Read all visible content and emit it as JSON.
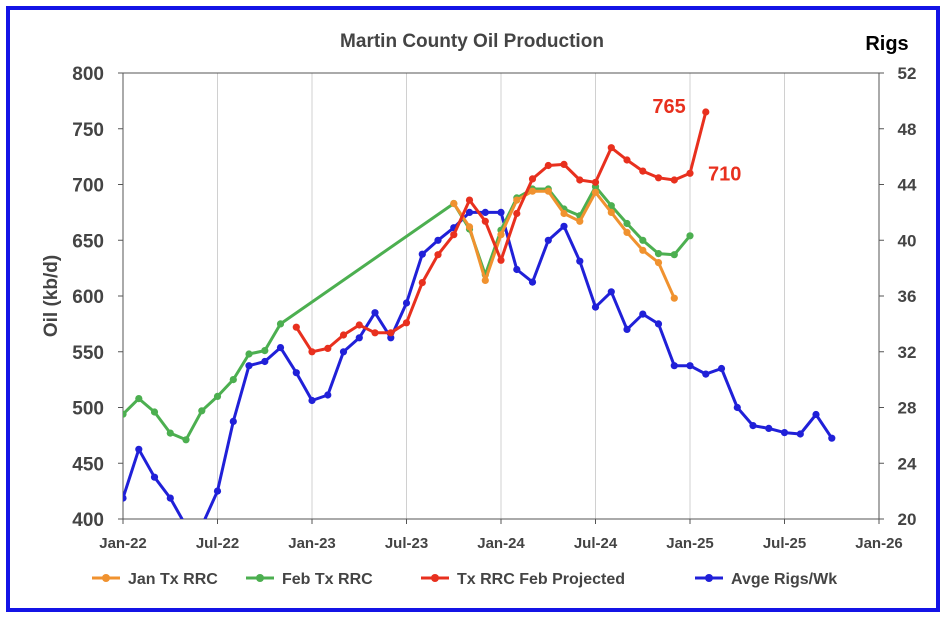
{
  "chart_data": {
    "type": "line",
    "title": "Martin County Oil Production",
    "ylabel": "Oil (kb/d)",
    "y2label": "Rigs",
    "ylim": [
      400,
      800
    ],
    "y2lim": [
      20,
      52
    ],
    "yticks": [
      "800",
      "750",
      "700",
      "650",
      "600",
      "550",
      "500",
      "450",
      "400"
    ],
    "y2ticks": [
      "52",
      "48",
      "44",
      "40",
      "36",
      "32",
      "28",
      "24",
      "20"
    ],
    "xticks": [
      "Jan-22",
      "Jul-22",
      "Jan-23",
      "Jul-23",
      "Jan-24",
      "Jul-24",
      "Jan-25",
      "Jul-25",
      "Jan-26"
    ],
    "grid": "vertical",
    "legend_position": "bottom",
    "annotations": [
      {
        "text": "765",
        "color": "#e8301e"
      },
      {
        "text": "710",
        "color": "#e8301e"
      }
    ],
    "series": [
      {
        "name": "Jan Tx RRC",
        "color": "#f0922f",
        "axis": "left",
        "points": [
          [
            "2023-10",
            683
          ],
          [
            "2023-11",
            662
          ],
          [
            "2023-12",
            614
          ],
          [
            "2024-01",
            655
          ],
          [
            "2024-02",
            686
          ],
          [
            "2024-03",
            694
          ],
          [
            "2024-04",
            694
          ],
          [
            "2024-05",
            674
          ],
          [
            "2024-06",
            667
          ],
          [
            "2024-07",
            693
          ],
          [
            "2024-08",
            675
          ],
          [
            "2024-09",
            657
          ],
          [
            "2024-10",
            641
          ],
          [
            "2024-11",
            630
          ],
          [
            "2024-12",
            598
          ]
        ]
      },
      {
        "name": "Feb Tx RRC",
        "color": "#4caf50",
        "axis": "left",
        "points": [
          [
            "2022-01",
            494
          ],
          [
            "2022-02",
            508
          ],
          [
            "2022-03",
            496
          ],
          [
            "2022-04",
            477
          ],
          [
            "2022-05",
            471
          ],
          [
            "2022-06",
            497
          ],
          [
            "2022-07",
            510
          ],
          [
            "2022-08",
            525
          ],
          [
            "2022-09",
            548
          ],
          [
            "2022-10",
            551
          ],
          [
            "2022-11",
            575
          ],
          [
            "2023-10",
            683
          ],
          [
            "2023-11",
            660
          ],
          [
            "2023-12",
            619
          ],
          [
            "2024-01",
            659
          ],
          [
            "2024-02",
            688
          ],
          [
            "2024-03",
            696
          ],
          [
            "2024-04",
            696
          ],
          [
            "2024-05",
            678
          ],
          [
            "2024-06",
            672
          ],
          [
            "2024-07",
            698
          ],
          [
            "2024-08",
            681
          ],
          [
            "2024-09",
            665
          ],
          [
            "2024-10",
            650
          ],
          [
            "2024-11",
            638
          ],
          [
            "2024-12",
            637
          ],
          [
            "2025-01",
            654
          ]
        ]
      },
      {
        "name": "Tx RRC Feb Projected",
        "color": "#e8301e",
        "axis": "left",
        "points": [
          [
            "2022-12",
            572
          ],
          [
            "2023-01",
            550
          ],
          [
            "2023-02",
            553
          ],
          [
            "2023-03",
            565
          ],
          [
            "2023-04",
            574
          ],
          [
            "2023-05",
            567
          ],
          [
            "2023-06",
            567
          ],
          [
            "2023-07",
            576
          ],
          [
            "2023-08",
            612
          ],
          [
            "2023-09",
            637
          ],
          [
            "2023-10",
            655
          ],
          [
            "2023-11",
            686
          ],
          [
            "2023-12",
            667
          ],
          [
            "2024-01",
            632
          ],
          [
            "2024-02",
            674
          ],
          [
            "2024-03",
            705
          ],
          [
            "2024-04",
            717
          ],
          [
            "2024-05",
            718
          ],
          [
            "2024-06",
            704
          ],
          [
            "2024-07",
            702
          ],
          [
            "2024-08",
            733
          ],
          [
            "2024-09",
            722
          ],
          [
            "2024-10",
            712
          ],
          [
            "2024-11",
            706
          ],
          [
            "2024-12",
            704
          ],
          [
            "2025-01",
            710
          ],
          [
            "2025-02",
            765
          ]
        ]
      },
      {
        "name": "Avge Rigs/Wk",
        "color": "#2020d8",
        "axis": "right",
        "points": [
          [
            "2022-01",
            21.5
          ],
          [
            "2022-02",
            25.0
          ],
          [
            "2022-03",
            23.0
          ],
          [
            "2022-04",
            21.5
          ],
          [
            "2022-05",
            19.5
          ],
          [
            "2022-06",
            19.5
          ],
          [
            "2022-07",
            22.0
          ],
          [
            "2022-08",
            27.0
          ],
          [
            "2022-09",
            31.0
          ],
          [
            "2022-10",
            31.3
          ],
          [
            "2022-11",
            32.3
          ],
          [
            "2022-12",
            30.5
          ],
          [
            "2023-01",
            28.5
          ],
          [
            "2023-02",
            28.9
          ],
          [
            "2023-03",
            32.0
          ],
          [
            "2023-04",
            33.0
          ],
          [
            "2023-05",
            34.8
          ],
          [
            "2023-06",
            33.0
          ],
          [
            "2023-07",
            35.5
          ],
          [
            "2023-08",
            39.0
          ],
          [
            "2023-09",
            40.0
          ],
          [
            "2023-10",
            40.9
          ],
          [
            "2023-11",
            42.0
          ],
          [
            "2023-12",
            42.0
          ],
          [
            "2024-01",
            42.0
          ],
          [
            "2024-02",
            37.9
          ],
          [
            "2024-03",
            37.0
          ],
          [
            "2024-04",
            40.0
          ],
          [
            "2024-05",
            41.0
          ],
          [
            "2024-06",
            38.5
          ],
          [
            "2024-07",
            35.2
          ],
          [
            "2024-08",
            36.3
          ],
          [
            "2024-09",
            33.6
          ],
          [
            "2024-10",
            34.7
          ],
          [
            "2024-11",
            34.0
          ],
          [
            "2024-12",
            31.0
          ],
          [
            "2025-01",
            31.0
          ],
          [
            "2025-02",
            30.4
          ],
          [
            "2025-03",
            30.8
          ],
          [
            "2025-04",
            28.0
          ],
          [
            "2025-05",
            26.7
          ],
          [
            "2025-06",
            26.5
          ],
          [
            "2025-07",
            26.2
          ],
          [
            "2025-08",
            26.1
          ],
          [
            "2025-09",
            27.5
          ],
          [
            "2025-10",
            25.8
          ]
        ]
      }
    ]
  }
}
